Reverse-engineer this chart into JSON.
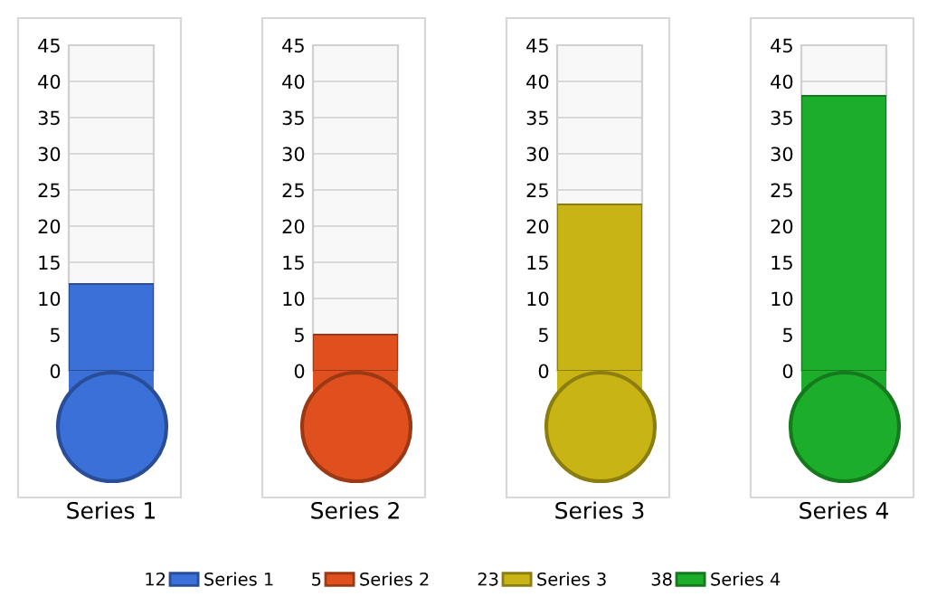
{
  "chart_data": [
    {
      "type": "bar",
      "categories": [
        "Series 1"
      ],
      "series": [
        {
          "name": "Series 1",
          "color": "#3a70d8",
          "values": [
            12
          ]
        }
      ],
      "ylim": [
        0,
        45
      ],
      "yticks": [
        0,
        5,
        10,
        15,
        20,
        25,
        30,
        35,
        40,
        45
      ],
      "grid": "y",
      "legend": "bottom",
      "annotations": [
        "12"
      ]
    },
    {
      "type": "bar",
      "categories": [
        "Series 2"
      ],
      "series": [
        {
          "name": "Series 2",
          "color": "#e0501e",
          "values": [
            5
          ]
        }
      ],
      "ylim": [
        0,
        45
      ],
      "yticks": [
        0,
        5,
        10,
        15,
        20,
        25,
        30,
        35,
        40,
        45
      ],
      "grid": "y",
      "legend": "bottom",
      "annotations": [
        "5"
      ]
    },
    {
      "type": "bar",
      "categories": [
        "Series 3"
      ],
      "series": [
        {
          "name": "Series 3",
          "color": "#c8b414",
          "values": [
            23
          ]
        }
      ],
      "ylim": [
        0,
        45
      ],
      "yticks": [
        0,
        5,
        10,
        15,
        20,
        25,
        30,
        35,
        40,
        45
      ],
      "grid": "y",
      "legend": "bottom",
      "annotations": [
        "23"
      ]
    },
    {
      "type": "bar",
      "categories": [
        "Series 4"
      ],
      "series": [
        {
          "name": "Series 4",
          "color": "#1cae2a",
          "values": [
            38
          ]
        }
      ],
      "ylim": [
        0,
        45
      ],
      "yticks": [
        0,
        5,
        10,
        15,
        20,
        25,
        30,
        35,
        40,
        45
      ],
      "grid": "y",
      "legend": "bottom",
      "annotations": [
        "38"
      ]
    }
  ]
}
